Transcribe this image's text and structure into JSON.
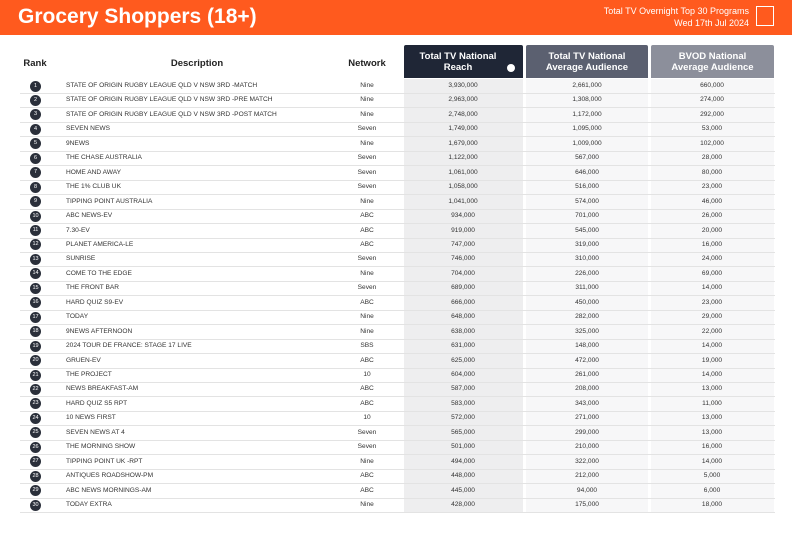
{
  "header": {
    "title": "Grocery Shoppers (18+)",
    "subtitle": "Total TV Overnight Top 30 Programs",
    "date": "Wed 17th Jul 2024"
  },
  "table": {
    "columns": [
      "Rank",
      "Description",
      "Network",
      "Total TV National Reach",
      "Total TV National Average Audience",
      "BVOD National Average Audience"
    ],
    "rows": [
      [
        1,
        "STATE OF ORIGIN RUGBY LEAGUE QLD V NSW 3RD -MATCH",
        "Nine",
        "3,930,000",
        "2,661,000",
        "660,000"
      ],
      [
        2,
        "STATE OF ORIGIN RUGBY LEAGUE QLD V NSW 3RD -PRE MATCH",
        "Nine",
        "2,963,000",
        "1,308,000",
        "274,000"
      ],
      [
        3,
        "STATE OF ORIGIN RUGBY LEAGUE QLD V NSW 3RD -POST MATCH",
        "Nine",
        "2,748,000",
        "1,172,000",
        "292,000"
      ],
      [
        4,
        "SEVEN NEWS",
        "Seven",
        "1,749,000",
        "1,095,000",
        "53,000"
      ],
      [
        5,
        "9NEWS",
        "Nine",
        "1,679,000",
        "1,009,000",
        "102,000"
      ],
      [
        6,
        "THE CHASE AUSTRALIA",
        "Seven",
        "1,122,000",
        "567,000",
        "28,000"
      ],
      [
        7,
        "HOME AND AWAY",
        "Seven",
        "1,061,000",
        "646,000",
        "80,000"
      ],
      [
        8,
        "THE 1% CLUB UK",
        "Seven",
        "1,058,000",
        "516,000",
        "23,000"
      ],
      [
        9,
        "TIPPING POINT AUSTRALIA",
        "Nine",
        "1,041,000",
        "574,000",
        "46,000"
      ],
      [
        10,
        "ABC NEWS-EV",
        "ABC",
        "934,000",
        "701,000",
        "26,000"
      ],
      [
        11,
        "7.30-EV",
        "ABC",
        "919,000",
        "545,000",
        "20,000"
      ],
      [
        12,
        "PLANET AMERICA-LE",
        "ABC",
        "747,000",
        "319,000",
        "16,000"
      ],
      [
        13,
        "SUNRISE",
        "Seven",
        "746,000",
        "310,000",
        "24,000"
      ],
      [
        14,
        "COME TO THE EDGE",
        "Nine",
        "704,000",
        "226,000",
        "69,000"
      ],
      [
        15,
        "THE FRONT BAR",
        "Seven",
        "689,000",
        "311,000",
        "14,000"
      ],
      [
        16,
        "HARD QUIZ S9-EV",
        "ABC",
        "666,000",
        "450,000",
        "23,000"
      ],
      [
        17,
        "TODAY",
        "Nine",
        "648,000",
        "282,000",
        "29,000"
      ],
      [
        18,
        "9NEWS AFTERNOON",
        "Nine",
        "638,000",
        "325,000",
        "22,000"
      ],
      [
        19,
        "2024 TOUR DE FRANCE: STAGE 17 LIVE",
        "SBS",
        "631,000",
        "148,000",
        "14,000"
      ],
      [
        20,
        "GRUEN-EV",
        "ABC",
        "625,000",
        "472,000",
        "19,000"
      ],
      [
        21,
        "THE PROJECT",
        "10",
        "604,000",
        "261,000",
        "14,000"
      ],
      [
        22,
        "NEWS BREAKFAST-AM",
        "ABC",
        "587,000",
        "208,000",
        "13,000"
      ],
      [
        23,
        "HARD QUIZ S5 RPT",
        "ABC",
        "583,000",
        "343,000",
        "11,000"
      ],
      [
        24,
        "10 NEWS FIRST",
        "10",
        "572,000",
        "271,000",
        "13,000"
      ],
      [
        25,
        "SEVEN NEWS AT 4",
        "Seven",
        "565,000",
        "299,000",
        "13,000"
      ],
      [
        26,
        "THE MORNING SHOW",
        "Seven",
        "501,000",
        "210,000",
        "16,000"
      ],
      [
        27,
        "TIPPING POINT UK -RPT",
        "Nine",
        "494,000",
        "322,000",
        "14,000"
      ],
      [
        28,
        "ANTIQUES ROADSHOW-PM",
        "ABC",
        "448,000",
        "212,000",
        "5,000"
      ],
      [
        29,
        "ABC NEWS MORNINGS-AM",
        "ABC",
        "445,000",
        "94,000",
        "6,000"
      ],
      [
        30,
        "TODAY EXTRA",
        "Nine",
        "428,000",
        "175,000",
        "18,000"
      ]
    ]
  }
}
